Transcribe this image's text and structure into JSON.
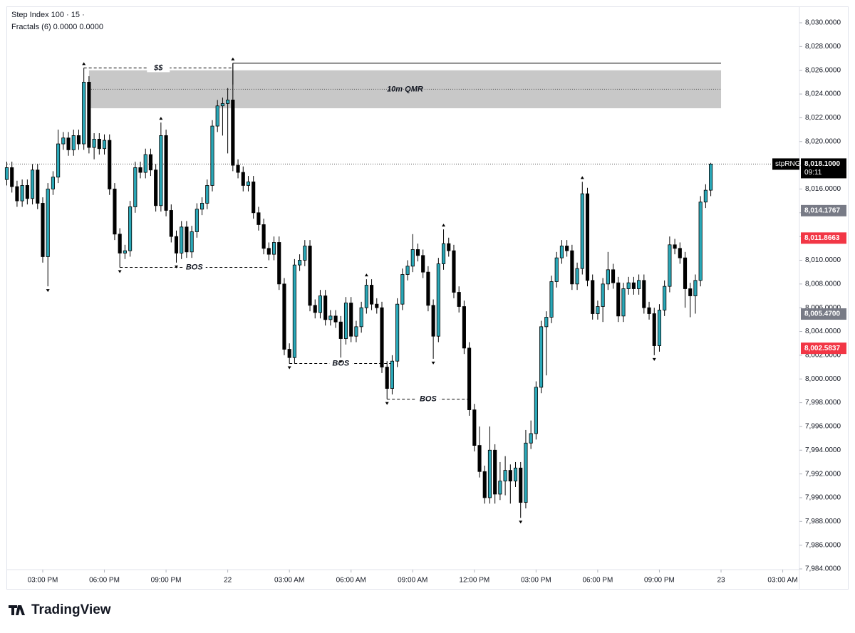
{
  "header": {
    "symbol": "Step Index 100 · 15 ·",
    "indicator": "Fractals (6)  0.0000  0.0000"
  },
  "logo": "TradingView",
  "chart_data": {
    "type": "candlestick",
    "open": [
      8016.8,
      8017.8,
      8016.2,
      8015.0,
      8016.3,
      8015.2,
      8017.6,
      8014.8,
      8010.3,
      8016.0,
      8017.0,
      8019.8,
      8020.3,
      8019.3,
      8020.5,
      8019.8,
      8025.0,
      8019.5,
      8020.2,
      8019.4,
      8020.1,
      8016.0,
      8012.2,
      8010.6,
      8010.8,
      8014.5,
      8017.8,
      8017.4,
      8018.9,
      8017.6,
      8014.6,
      8020.5,
      8014.2,
      8012.0,
      8010.6,
      8012.8,
      8010.7,
      8012.4,
      8014.3,
      8014.8,
      8016.3,
      8021.3,
      8023.0,
      8023.2,
      8023.5,
      8018.0,
      8017.4,
      8016.3,
      8016.6,
      8014.0,
      8013.0,
      8011.0,
      8010.5,
      8011.5,
      8008.0,
      8002.5,
      8001.8,
      8009.6,
      8010.0,
      8011.2,
      8006.2,
      8005.6,
      8007.0,
      8005.0,
      8005.3,
      8004.8,
      8003.4,
      8006.4,
      8003.6,
      8004.4,
      8006.0,
      8007.9,
      8006.3,
      8006.0,
      8001.0,
      7999.2,
      8001.5,
      8006.3,
      8008.8,
      8009.5,
      8010.9,
      8010.4,
      8009.0,
      8006.2,
      8003.6,
      8009.7,
      8011.4,
      8010.8,
      8007.3,
      8006.1,
      8002.6,
      7997.4,
      7994.4,
      7992.2,
      7990.0,
      7994.0,
      7990.3,
      7991.4,
      7992.3,
      7991.4,
      7992.5,
      7989.6,
      7994.6,
      7995.4,
      7999.3,
      8004.4,
      8005.2,
      8008.2,
      8010.2,
      8011.2,
      8010.8,
      8008.0,
      8009.3,
      8015.6,
      8008.3,
      8005.5,
      8006.1,
      8008.0,
      8009.2,
      8008.1,
      8005.3,
      8007.6,
      8008.1,
      8007.6,
      8008.3,
      8006.0,
      8005.5,
      8002.8,
      8005.8,
      8007.8,
      8011.3,
      8011.0,
      8010.2,
      8007.6,
      8007.0,
      8008.3,
      8014.9,
      8015.9
    ],
    "high": [
      8018.3,
      8018.3,
      8016.7,
      8016.8,
      8016.8,
      8018.1,
      8018.1,
      8015.3,
      8016.5,
      8017.5,
      8021.0,
      8020.8,
      8020.8,
      8021.0,
      8021.0,
      8026.2,
      8025.5,
      8020.7,
      8020.7,
      8020.6,
      8020.6,
      8016.5,
      8012.7,
      8011.3,
      8015.0,
      8018.3,
      8018.3,
      8019.4,
      8019.4,
      8018.1,
      8021.6,
      8021.0,
      8014.7,
      8012.5,
      8013.3,
      8013.3,
      8012.9,
      8014.8,
      8015.3,
      8016.8,
      8021.8,
      8023.5,
      8023.7,
      8024.5,
      8026.6,
      8018.5,
      8017.9,
      8017.1,
      8017.1,
      8014.5,
      8013.5,
      8011.5,
      8012.0,
      8012.0,
      8008.5,
      8003.0,
      8010.1,
      8010.5,
      8011.7,
      8011.7,
      8006.7,
      8007.5,
      8007.5,
      8005.8,
      8005.8,
      8005.3,
      8006.9,
      8006.9,
      8004.9,
      8006.5,
      8008.4,
      8008.4,
      8006.8,
      8006.5,
      8001.5,
      8002.0,
      8006.8,
      8009.3,
      8010.0,
      8012.2,
      8011.4,
      8010.9,
      8009.5,
      8006.7,
      8010.2,
      8012.6,
      8011.9,
      8011.3,
      8007.8,
      8006.6,
      8003.1,
      7997.9,
      7996.0,
      7992.7,
      7996.0,
      7994.5,
      7993.0,
      7993.5,
      7992.8,
      7993.0,
      7993.0,
      7995.7,
      7996.5,
      7999.8,
      8004.9,
      8005.7,
      8008.7,
      8010.7,
      8011.7,
      8011.7,
      8011.3,
      8009.8,
      8016.6,
      8016.1,
      8008.8,
      8006.6,
      8008.5,
      8010.7,
      8009.7,
      8008.6,
      8008.1,
      8008.6,
      8008.6,
      8008.8,
      8008.8,
      8006.5,
      8006.0,
      8006.3,
      8008.3,
      8012.0,
      8011.8,
      8011.5,
      8010.7,
      8008.1,
      8008.8,
      8015.4,
      8016.4,
      8018.2
    ],
    "low": [
      8016.3,
      8015.7,
      8014.5,
      8014.5,
      8014.7,
      8014.7,
      8014.3,
      8009.8,
      8007.8,
      8015.5,
      8016.5,
      8019.3,
      8018.8,
      8018.8,
      8019.3,
      8019.3,
      8019.0,
      8018.5,
      8018.9,
      8018.9,
      8015.5,
      8011.7,
      8009.4,
      8010.1,
      8010.3,
      8014.0,
      8016.9,
      8016.9,
      8017.1,
      8014.1,
      8014.1,
      8013.7,
      8011.5,
      8009.8,
      8010.1,
      8010.2,
      8010.2,
      8011.9,
      8013.8,
      8014.3,
      8015.8,
      8020.8,
      8020.5,
      8019.0,
      8017.5,
      8016.9,
      8015.8,
      8015.8,
      8013.5,
      8012.5,
      8010.5,
      8010.0,
      8010.0,
      8007.5,
      8002.0,
      8001.3,
      8001.3,
      8009.1,
      8009.5,
      8005.7,
      8005.1,
      8005.1,
      8004.5,
      8004.5,
      8004.3,
      8001.8,
      8002.9,
      8003.1,
      8003.1,
      8003.9,
      8005.5,
      8005.8,
      8005.5,
      8000.5,
      7998.3,
      7998.7,
      8001.0,
      8005.8,
      8008.3,
      8009.0,
      8009.9,
      8008.5,
      8005.7,
      8001.7,
      8003.1,
      8009.2,
      8010.3,
      8006.8,
      8005.6,
      8002.1,
      7996.9,
      7993.9,
      7991.7,
      7989.5,
      7989.5,
      7989.5,
      7989.8,
      7990.2,
      7989.5,
      7990.9,
      7988.3,
      7989.1,
      7994.1,
      7994.9,
      7998.8,
      8000.3,
      8004.7,
      8007.7,
      8009.7,
      8010.3,
      8007.5,
      8007.5,
      8008.8,
      8007.8,
      8005.0,
      8005.0,
      8004.8,
      8007.5,
      8007.6,
      8004.8,
      8004.8,
      8007.1,
      8007.1,
      8007.1,
      8005.5,
      8005.0,
      8002.0,
      8002.3,
      8005.3,
      8007.3,
      8010.5,
      8009.7,
      8006.0,
      8005.2,
      8005.5,
      8007.8,
      8014.4,
      8015.4
    ],
    "close": [
      8017.8,
      8016.2,
      8015.0,
      8016.3,
      8015.2,
      8017.6,
      8014.8,
      8010.3,
      8016.0,
      8017.0,
      8019.8,
      8020.3,
      8019.3,
      8020.5,
      8019.8,
      8025.0,
      8019.5,
      8020.2,
      8019.4,
      8020.1,
      8016.0,
      8012.2,
      8010.6,
      8010.8,
      8014.5,
      8017.8,
      8017.4,
      8018.9,
      8017.6,
      8014.6,
      8020.5,
      8014.2,
      8012.0,
      8010.6,
      8012.8,
      8010.7,
      8012.4,
      8014.3,
      8014.8,
      8016.3,
      8021.3,
      8023.0,
      8023.2,
      8023.5,
      8018.0,
      8017.4,
      8016.3,
      8016.6,
      8014.0,
      8013.0,
      8011.0,
      8010.5,
      8011.5,
      8008.0,
      8002.5,
      8001.8,
      8009.6,
      8010.0,
      8011.2,
      8006.2,
      8005.6,
      8007.0,
      8005.0,
      8005.3,
      8004.8,
      8003.4,
      8006.4,
      8003.6,
      8004.4,
      8006.0,
      8007.9,
      8006.3,
      8006.0,
      8001.0,
      7999.2,
      8001.5,
      8006.3,
      8008.8,
      8009.5,
      8010.9,
      8010.4,
      8009.0,
      8006.2,
      8003.6,
      8009.7,
      8011.4,
      8010.8,
      8007.3,
      8006.1,
      8002.6,
      7997.4,
      7994.4,
      7992.2,
      7990.0,
      7994.0,
      7990.3,
      7991.4,
      7992.3,
      7991.4,
      7992.5,
      7989.6,
      7994.6,
      7995.4,
      7999.3,
      8004.4,
      8005.2,
      8008.2,
      8010.2,
      8011.2,
      8010.8,
      8008.0,
      8009.3,
      8015.6,
      8008.3,
      8005.5,
      8006.1,
      8008.0,
      8009.2,
      8008.1,
      8005.3,
      8007.6,
      8008.1,
      8007.6,
      8008.3,
      8006.0,
      8005.5,
      8002.8,
      8005.8,
      8007.8,
      8011.3,
      8011.0,
      8010.2,
      8007.6,
      8007.0,
      8008.3,
      8014.9,
      8015.9,
      8018.1
    ],
    "up_color": "#2aa8b8",
    "down_color": "#000000",
    "fractals_up": [
      15,
      30,
      44,
      70,
      85,
      112
    ],
    "fractals_down": [
      8,
      22,
      33,
      55,
      65,
      74,
      83,
      100,
      126
    ],
    "zone": {
      "label": "10m QMR",
      "from": 16,
      "to": 139,
      "top": 8026.0,
      "bottom": 8022.8,
      "color": "#c8c8c8"
    },
    "levels": [
      {
        "label": "$$",
        "value": 8026.2,
        "from": 15,
        "to": 44
      },
      {
        "label": "BOS",
        "value": 8009.4,
        "from": 22,
        "to": 51
      },
      {
        "label": "BOS",
        "value": 8001.3,
        "from": 55,
        "to": 75
      },
      {
        "label": "BOS",
        "value": 7998.3,
        "from": 74,
        "to": 90
      }
    ],
    "resistance": {
      "value": 8026.6,
      "from": 44,
      "to": 139
    },
    "last_price": {
      "name": "stpRNG",
      "value": 8018.1,
      "label": "8,018.1000",
      "countdown": "09:11"
    },
    "price_badges": [
      {
        "value": 8014.1767,
        "label": "8,014.1767",
        "color": "#787b86"
      },
      {
        "value": 8011.8663,
        "label": "8,011.8663",
        "color": "#f23645"
      },
      {
        "value": 8005.47,
        "label": "8,005.4700",
        "color": "#787b86"
      },
      {
        "value": 8002.5837,
        "label": "8,002.5837",
        "color": "#f23645"
      }
    ],
    "xlim": [
      0.07,
      154.25
    ],
    "xticks": [
      {
        "value": 7,
        "label": "03:00 PM"
      },
      {
        "value": 19,
        "label": "06:00 PM"
      },
      {
        "value": 31,
        "label": "09:00 PM"
      },
      {
        "value": 43,
        "label": "22"
      },
      {
        "value": 55,
        "label": "03:00 AM"
      },
      {
        "value": 67,
        "label": "06:00 AM"
      },
      {
        "value": 79,
        "label": "09:00 AM"
      },
      {
        "value": 91,
        "label": "12:00 PM"
      },
      {
        "value": 103,
        "label": "03:00 PM"
      },
      {
        "value": 115,
        "label": "06:00 PM"
      },
      {
        "value": 127,
        "label": "09:00 PM"
      },
      {
        "value": 139,
        "label": "23"
      },
      {
        "value": 151,
        "label": "03:00 AM"
      }
    ],
    "ylim": [
      7983.94,
      8031.32
    ],
    "yticks": [
      {
        "value": 7984,
        "label": "7,984.0000"
      },
      {
        "value": 7986,
        "label": "7,986.0000"
      },
      {
        "value": 7988,
        "label": "7,988.0000"
      },
      {
        "value": 7990,
        "label": "7,990.0000"
      },
      {
        "value": 7992,
        "label": "7,992.0000"
      },
      {
        "value": 7994,
        "label": "7,994.0000"
      },
      {
        "value": 7996,
        "label": "7,996.0000"
      },
      {
        "value": 7998,
        "label": "7,998.0000"
      },
      {
        "value": 8000,
        "label": "8,000.0000"
      },
      {
        "value": 8002,
        "label": "8,002.0000"
      },
      {
        "value": 8004,
        "label": "8,004.0000"
      },
      {
        "value": 8006,
        "label": "8,006.0000"
      },
      {
        "value": 8008,
        "label": "8,008.0000"
      },
      {
        "value": 8010,
        "label": "8,010.0000"
      },
      {
        "value": 8012,
        "label": "8,012.0000"
      },
      {
        "value": 8014,
        "label": "8,014.0000"
      },
      {
        "value": 8016,
        "label": "8,016.0000"
      },
      {
        "value": 8018,
        "label": "8,018.0000"
      },
      {
        "value": 8020,
        "label": "8,020.0000"
      },
      {
        "value": 8022,
        "label": "8,022.0000"
      },
      {
        "value": 8024,
        "label": "8,024.0000"
      },
      {
        "value": 8026,
        "label": "8,026.0000"
      },
      {
        "value": 8028,
        "label": "8,028.0000"
      },
      {
        "value": 8030,
        "label": "8,030.0000"
      }
    ]
  }
}
